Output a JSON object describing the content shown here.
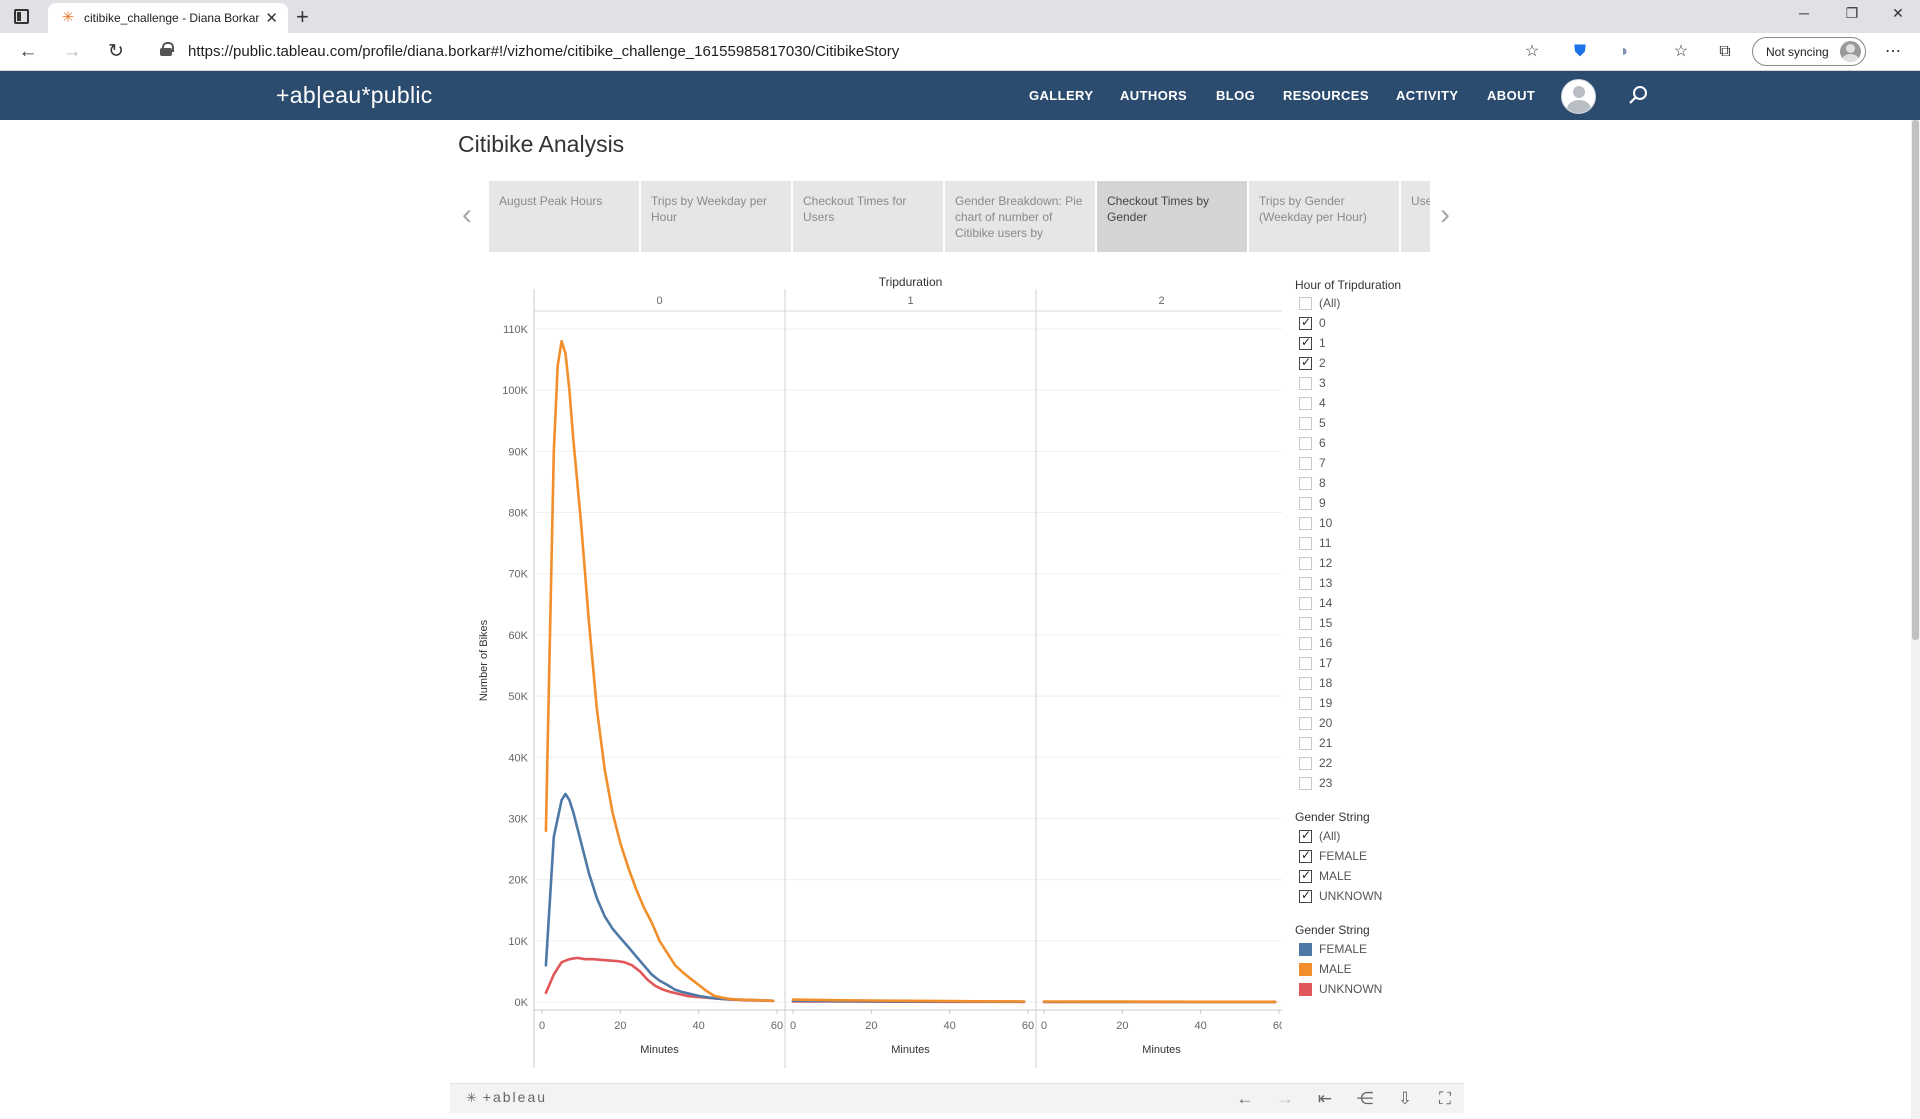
{
  "browser": {
    "tab_title": "citibike_challenge - Diana Borkar",
    "url": "https://public.tableau.com/profile/diana.borkar#!/vizhome/citibike_challenge_16155985817030/CitibikeStory",
    "sync_label": "Not syncing"
  },
  "header": {
    "logo": "+ab|eau*public",
    "nav": [
      "GALLERY",
      "AUTHORS",
      "BLOG",
      "RESOURCES",
      "ACTIVITY",
      "ABOUT"
    ]
  },
  "story": {
    "title": "Citibike Analysis",
    "points": [
      "August Peak Hours",
      "Trips by Weekday per Hour",
      "Checkout Times for Users",
      "Gender Breakdown: Pie chart of number of Citibike users by",
      "Checkout Times by Gender",
      "Trips by Gender (Weekday per Hour)",
      "Users by W"
    ],
    "active_index": 4
  },
  "filters": {
    "hour": {
      "title": "Hour of Tripduration",
      "options": [
        "(All)",
        "0",
        "1",
        "2",
        "3",
        "4",
        "5",
        "6",
        "7",
        "8",
        "9",
        "10",
        "11",
        "12",
        "13",
        "14",
        "15",
        "16",
        "17",
        "18",
        "19",
        "20",
        "21",
        "22",
        "23"
      ],
      "checked": [
        false,
        true,
        true,
        true,
        false,
        false,
        false,
        false,
        false,
        false,
        false,
        false,
        false,
        false,
        false,
        false,
        false,
        false,
        false,
        false,
        false,
        false,
        false,
        false,
        false
      ]
    },
    "gender": {
      "title": "Gender String",
      "options": [
        "(All)",
        "FEMALE",
        "MALE",
        "UNKNOWN"
      ],
      "checked": [
        true,
        true,
        true,
        true
      ]
    }
  },
  "legend": {
    "title": "Gender String",
    "items": [
      {
        "label": "FEMALE",
        "color": "#4e79a7"
      },
      {
        "label": "MALE",
        "color": "#f28e2b"
      },
      {
        "label": "UNKNOWN",
        "color": "#e15759"
      }
    ]
  },
  "chart_data": {
    "type": "line",
    "title": "Tripduration",
    "ylabel": "Number of Bikes",
    "xlabel": "Minutes",
    "ylim": [
      0,
      110000
    ],
    "yticks": [
      0,
      10000,
      20000,
      30000,
      40000,
      50000,
      60000,
      70000,
      80000,
      90000,
      100000,
      110000
    ],
    "ytick_labels": [
      "0K",
      "10K",
      "20K",
      "30K",
      "40K",
      "50K",
      "60K",
      "70K",
      "80K",
      "90K",
      "100K",
      "110K"
    ],
    "xlim": [
      0,
      60
    ],
    "xticks": [
      0,
      20,
      40,
      60
    ],
    "grid": true,
    "legend_position": "right",
    "panels": [
      {
        "label": "0",
        "series": [
          {
            "name": "MALE",
            "points": [
              [
                1,
                28000
              ],
              [
                3,
                90000
              ],
              [
                4,
                104000
              ],
              [
                5,
                108000
              ],
              [
                6,
                106000
              ],
              [
                7,
                100000
              ],
              [
                8,
                92000
              ],
              [
                10,
                78000
              ],
              [
                12,
                62000
              ],
              [
                14,
                48000
              ],
              [
                16,
                38000
              ],
              [
                18,
                31000
              ],
              [
                20,
                26000
              ],
              [
                22,
                22000
              ],
              [
                24,
                18500
              ],
              [
                26,
                15500
              ],
              [
                28,
                13000
              ],
              [
                30,
                10000
              ],
              [
                32,
                8000
              ],
              [
                34,
                6000
              ],
              [
                36,
                4800
              ],
              [
                38,
                3800
              ],
              [
                40,
                2800
              ],
              [
                42,
                1800
              ],
              [
                44,
                1000
              ],
              [
                46,
                700
              ],
              [
                48,
                500
              ],
              [
                50,
                400
              ],
              [
                55,
                300
              ],
              [
                59,
                200
              ]
            ]
          },
          {
            "name": "FEMALE",
            "points": [
              [
                1,
                6000
              ],
              [
                3,
                27000
              ],
              [
                5,
                33000
              ],
              [
                6,
                34000
              ],
              [
                7,
                33000
              ],
              [
                8,
                31000
              ],
              [
                10,
                26000
              ],
              [
                12,
                21000
              ],
              [
                14,
                17000
              ],
              [
                16,
                14000
              ],
              [
                18,
                12000
              ],
              [
                20,
                10500
              ],
              [
                22,
                9000
              ],
              [
                24,
                7500
              ],
              [
                26,
                6000
              ],
              [
                28,
                4500
              ],
              [
                30,
                3500
              ],
              [
                32,
                2800
              ],
              [
                34,
                2000
              ],
              [
                36,
                1600
              ],
              [
                38,
                1300
              ],
              [
                40,
                1000
              ],
              [
                42,
                800
              ],
              [
                44,
                600
              ],
              [
                46,
                500
              ],
              [
                50,
                400
              ],
              [
                55,
                300
              ],
              [
                59,
                200
              ]
            ]
          },
          {
            "name": "UNKNOWN",
            "points": [
              [
                1,
                1500
              ],
              [
                3,
                4500
              ],
              [
                5,
                6500
              ],
              [
                7,
                7000
              ],
              [
                9,
                7200
              ],
              [
                11,
                7000
              ],
              [
                13,
                7000
              ],
              [
                15,
                6900
              ],
              [
                17,
                6800
              ],
              [
                19,
                6700
              ],
              [
                21,
                6500
              ],
              [
                23,
                6000
              ],
              [
                25,
                5000
              ],
              [
                27,
                3600
              ],
              [
                29,
                2600
              ],
              [
                31,
                2000
              ],
              [
                33,
                1600
              ],
              [
                35,
                1300
              ],
              [
                37,
                1000
              ],
              [
                40,
                800
              ],
              [
                44,
                600
              ],
              [
                48,
                400
              ],
              [
                52,
                300
              ],
              [
                59,
                200
              ]
            ]
          }
        ]
      },
      {
        "label": "1",
        "series": [
          {
            "name": "MALE",
            "points": [
              [
                0,
                400
              ],
              [
                10,
                300
              ],
              [
                20,
                250
              ],
              [
                30,
                200
              ],
              [
                40,
                150
              ],
              [
                50,
                100
              ],
              [
                59,
                80
              ]
            ]
          },
          {
            "name": "FEMALE",
            "points": [
              [
                0,
                200
              ],
              [
                10,
                150
              ],
              [
                20,
                120
              ],
              [
                30,
                100
              ],
              [
                40,
                80
              ],
              [
                50,
                60
              ],
              [
                59,
                50
              ]
            ]
          },
          {
            "name": "UNKNOWN",
            "points": [
              [
                0,
                100
              ],
              [
                10,
                80
              ],
              [
                20,
                60
              ],
              [
                30,
                50
              ],
              [
                40,
                40
              ],
              [
                50,
                30
              ],
              [
                59,
                20
              ]
            ]
          }
        ]
      },
      {
        "label": "2",
        "series": [
          {
            "name": "MALE",
            "points": [
              [
                0,
                80
              ],
              [
                10,
                70
              ],
              [
                20,
                60
              ],
              [
                30,
                50
              ],
              [
                40,
                40
              ],
              [
                50,
                30
              ],
              [
                59,
                25
              ]
            ]
          },
          {
            "name": "FEMALE",
            "points": [
              [
                0,
                40
              ],
              [
                10,
                35
              ],
              [
                20,
                30
              ],
              [
                30,
                25
              ],
              [
                40,
                20
              ],
              [
                50,
                15
              ],
              [
                59,
                12
              ]
            ]
          },
          {
            "name": "UNKNOWN",
            "points": [
              [
                0,
                20
              ],
              [
                10,
                18
              ],
              [
                20,
                15
              ],
              [
                30,
                12
              ],
              [
                40,
                10
              ],
              [
                50,
                8
              ],
              [
                59,
                6
              ]
            ]
          }
        ]
      }
    ]
  },
  "toolbar": {
    "brand": "+ableau"
  }
}
